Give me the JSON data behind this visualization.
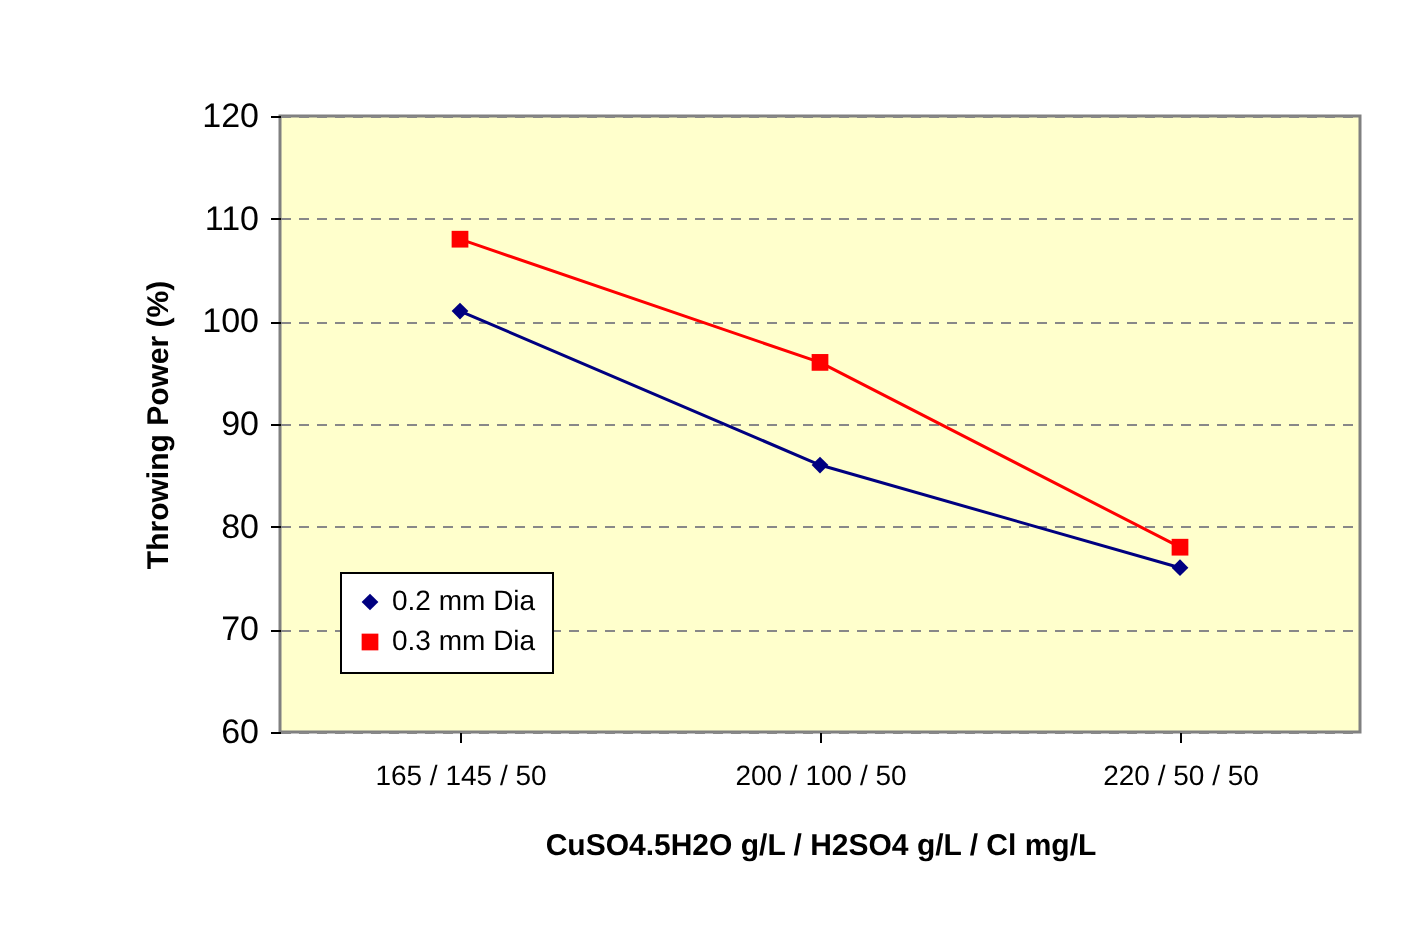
{
  "chart_data": {
    "type": "line",
    "xlabel": "CuSO4.5H2O g/L / H2SO4 g/L / Cl mg/L",
    "ylabel": "Throwing Power (%)",
    "categories": [
      "165 / 145 / 50",
      "200 / 100 / 50",
      "220 / 50 / 50"
    ],
    "series": [
      {
        "name": "0.2 mm Dia",
        "color": "#000080",
        "marker": "diamond",
        "values": [
          101,
          86,
          76
        ]
      },
      {
        "name": "0.3 mm Dia",
        "color": "#ff0000",
        "marker": "square",
        "values": [
          108,
          96,
          78
        ]
      }
    ],
    "ylim": [
      60,
      120
    ],
    "yticks": [
      60,
      70,
      80,
      90,
      100,
      110,
      120
    ],
    "grid": "y",
    "legend": "bottom left",
    "line_style": "solid"
  }
}
